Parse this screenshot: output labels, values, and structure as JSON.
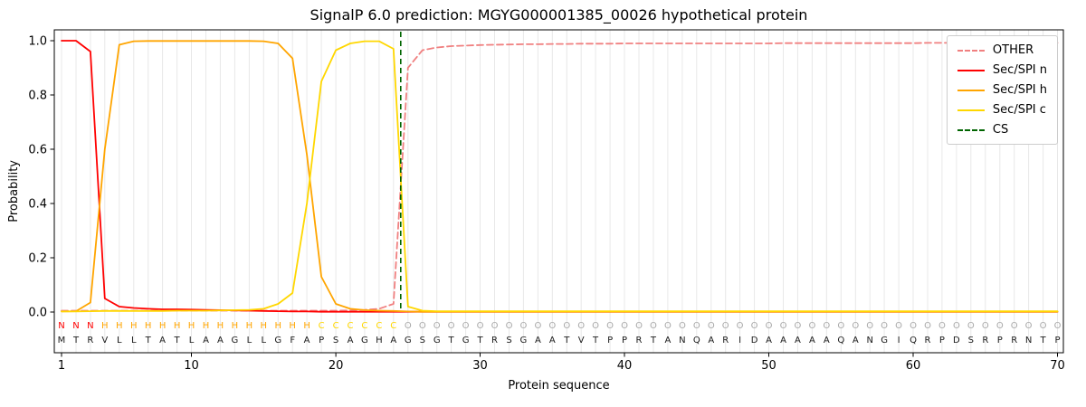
{
  "chart_data": {
    "type": "line",
    "title": "SignalP 6.0 prediction: MGYG000001385_00026 hypothetical protein",
    "xlabel": "Protein sequence",
    "ylabel": "Probability",
    "x_ticks": [
      1,
      10,
      20,
      30,
      40,
      50,
      60,
      70
    ],
    "y_tick_labels": [
      "0.0",
      "0.2",
      "0.4",
      "0.6",
      "0.8",
      "1.0"
    ],
    "xlim": [
      0.5,
      70.5
    ],
    "ylim": [
      -0.15,
      1.04
    ],
    "x_start": 1,
    "x_end": 70,
    "grid": "vertical light-gray line at every residue position",
    "legend_position": "upper right",
    "series": [
      {
        "id": "other",
        "name": "OTHER",
        "color": "#f08080",
        "dashed": true,
        "values": [
          0.005,
          0.005,
          0.005,
          0.005,
          0.005,
          0.005,
          0.005,
          0.005,
          0.005,
          0.005,
          0.005,
          0.005,
          0.005,
          0.005,
          0.005,
          0.005,
          0.005,
          0.005,
          0.005,
          0.005,
          0.006,
          0.008,
          0.012,
          0.03,
          0.9,
          0.965,
          0.975,
          0.98,
          0.982,
          0.984,
          0.985,
          0.986,
          0.987,
          0.987,
          0.988,
          0.988,
          0.989,
          0.989,
          0.989,
          0.99,
          0.99,
          0.99,
          0.99,
          0.99,
          0.99,
          0.99,
          0.99,
          0.99,
          0.99,
          0.99,
          0.991,
          0.991,
          0.991,
          0.991,
          0.991,
          0.991,
          0.991,
          0.991,
          0.991,
          0.991,
          0.992,
          0.992,
          0.992,
          0.992,
          0.992,
          0.992,
          0.992,
          0.992,
          0.992,
          0.992
        ]
      },
      {
        "id": "n",
        "name": "Sec/SPI n",
        "color": "#ff0000",
        "dashed": false,
        "values": [
          1.0,
          1.0,
          0.96,
          0.05,
          0.02,
          0.015,
          0.012,
          0.01,
          0.01,
          0.009,
          0.008,
          0.007,
          0.006,
          0.005,
          0.004,
          0.003,
          0.002,
          0.002,
          0.001,
          0.001,
          0.001,
          0.001,
          0.001,
          0.001,
          0.001,
          0.001,
          0.001,
          0.001,
          0.001,
          0.001,
          0.001,
          0.001,
          0.001,
          0.001,
          0.001,
          0.001,
          0.001,
          0.001,
          0.001,
          0.001,
          0.001,
          0.001,
          0.001,
          0.001,
          0.001,
          0.001,
          0.001,
          0.001,
          0.001,
          0.001,
          0.001,
          0.001,
          0.001,
          0.001,
          0.001,
          0.001,
          0.001,
          0.001,
          0.001,
          0.001,
          0.001,
          0.001,
          0.001,
          0.001,
          0.001,
          0.001,
          0.001,
          0.001,
          0.001,
          0.001
        ]
      },
      {
        "id": "h",
        "name": "Sec/SPI h",
        "color": "#ffa500",
        "dashed": false,
        "values": [
          0.002,
          0.003,
          0.035,
          0.6,
          0.985,
          0.998,
          0.999,
          0.999,
          0.999,
          0.999,
          0.999,
          0.999,
          0.999,
          0.999,
          0.998,
          0.99,
          0.935,
          0.58,
          0.13,
          0.03,
          0.012,
          0.007,
          0.005,
          0.004,
          0.002,
          0.001,
          0.001,
          0.001,
          0.001,
          0.001,
          0.001,
          0.001,
          0.001,
          0.001,
          0.001,
          0.001,
          0.001,
          0.001,
          0.001,
          0.001,
          0.001,
          0.001,
          0.001,
          0.001,
          0.001,
          0.001,
          0.001,
          0.001,
          0.001,
          0.001,
          0.001,
          0.001,
          0.001,
          0.001,
          0.001,
          0.001,
          0.001,
          0.001,
          0.001,
          0.001,
          0.001,
          0.001,
          0.001,
          0.001,
          0.001,
          0.001,
          0.001,
          0.001,
          0.001,
          0.001
        ]
      },
      {
        "id": "c",
        "name": "Sec/SPI c",
        "color": "#ffd700",
        "dashed": false,
        "values": [
          0.002,
          0.002,
          0.003,
          0.004,
          0.004,
          0.004,
          0.004,
          0.004,
          0.005,
          0.005,
          0.005,
          0.006,
          0.007,
          0.008,
          0.012,
          0.03,
          0.07,
          0.4,
          0.85,
          0.965,
          0.99,
          0.998,
          0.998,
          0.97,
          0.02,
          0.005,
          0.003,
          0.003,
          0.003,
          0.003,
          0.003,
          0.003,
          0.003,
          0.003,
          0.003,
          0.003,
          0.003,
          0.003,
          0.003,
          0.003,
          0.003,
          0.003,
          0.003,
          0.003,
          0.003,
          0.003,
          0.003,
          0.003,
          0.003,
          0.003,
          0.003,
          0.003,
          0.003,
          0.003,
          0.003,
          0.003,
          0.003,
          0.003,
          0.003,
          0.003,
          0.003,
          0.003,
          0.003,
          0.003,
          0.003,
          0.003,
          0.003,
          0.003,
          0.003,
          0.003
        ]
      }
    ],
    "cs_position": 24.5,
    "cs_color": "#006400",
    "sequence": "MTRVLLTATLAAGLLGFAPSAGHAGSGTGTRSGAATVTPPRTANQARIDAAAAAQANGIQRPDSRPRNTP",
    "regions": [
      {
        "label": "N",
        "color": "#ff0000",
        "start": 1,
        "end": 3
      },
      {
        "label": "H",
        "color": "#ffa500",
        "start": 4,
        "end": 18
      },
      {
        "label": "C",
        "color": "#ffd700",
        "start": 19,
        "end": 24
      },
      {
        "label": "O",
        "color": "#a9a9a9",
        "start": 25,
        "end": 70
      }
    ],
    "sequence_color": "#1a1a1a"
  },
  "legend": [
    {
      "id": "other",
      "label": "OTHER",
      "color": "#f08080",
      "dashed": true
    },
    {
      "id": "n",
      "label": "Sec/SPI n",
      "color": "#ff0000",
      "dashed": false
    },
    {
      "id": "h",
      "label": "Sec/SPI h",
      "color": "#ffa500",
      "dashed": false
    },
    {
      "id": "c",
      "label": "Sec/SPI c",
      "color": "#ffd700",
      "dashed": false
    },
    {
      "id": "cs",
      "label": "CS",
      "color": "#006400",
      "dashed": true
    }
  ]
}
